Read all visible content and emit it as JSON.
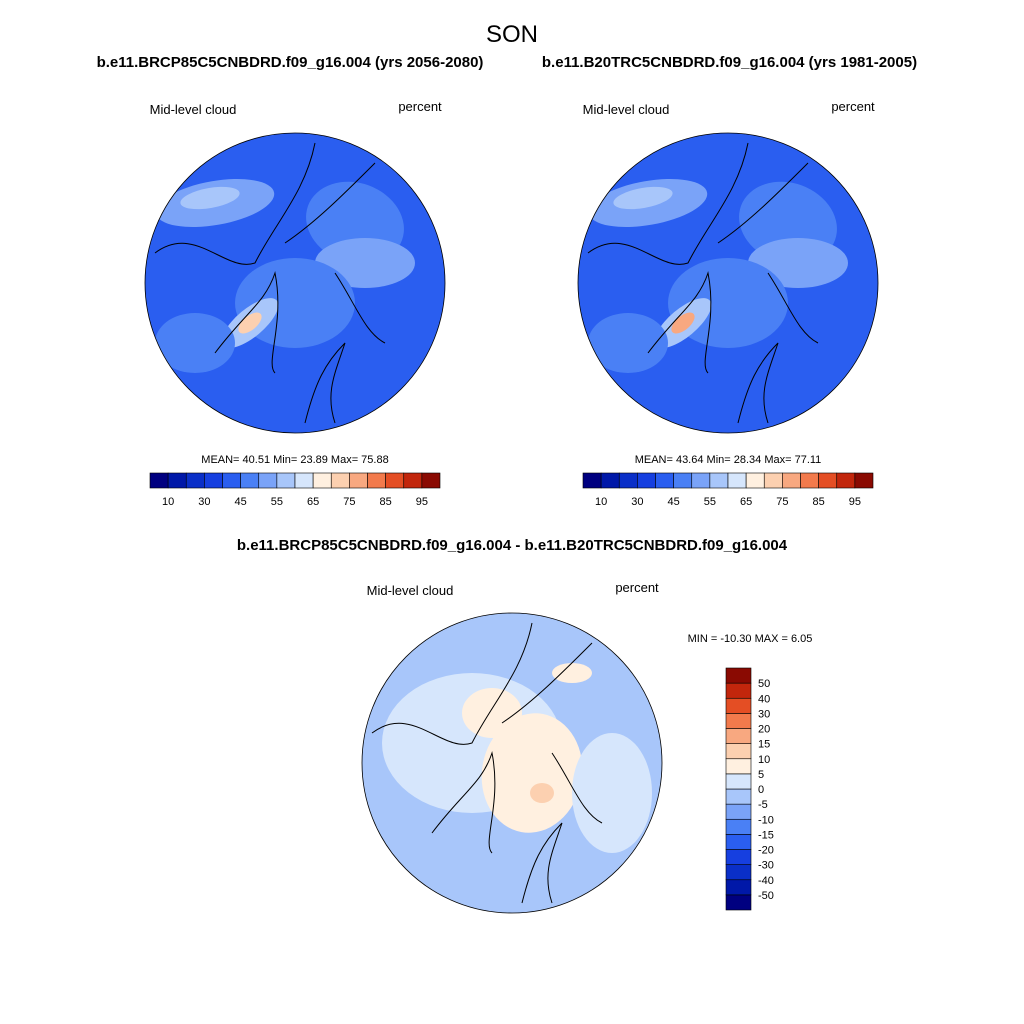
{
  "title": "SON",
  "colors": [
    "#000080",
    "#0018a8",
    "#0a2fc8",
    "#163fe0",
    "#2a5ef0",
    "#4a80f5",
    "#7aa3f8",
    "#a8c6fa",
    "#d6e6fc",
    "#fff0e0",
    "#fcd0b0",
    "#f8a880",
    "#f27a4c",
    "#e44e24",
    "#c2260c",
    "#8a0a02"
  ],
  "panels": [
    {
      "subtitle": "b.e11.BRCP85C5CNBDRD.f09_g16.004 (yrs 2056-2080)",
      "left_label": "Mid-level cloud",
      "right_label": "percent",
      "stats": "MEAN=  40.51  Min=  23.89  Max=  75.88",
      "colorbar_labels": [
        10,
        30,
        45,
        55,
        65,
        75,
        85,
        95
      ]
    },
    {
      "subtitle": "b.e11.B20TRC5CNBDRD.f09_g16.004 (yrs 1981-2005)",
      "left_label": "Mid-level cloud",
      "right_label": "percent",
      "stats": "MEAN=  43.64  Min=  28.34  Max=  77.11",
      "colorbar_labels": [
        10,
        30,
        45,
        55,
        65,
        75,
        85,
        95
      ]
    }
  ],
  "difference": {
    "subtitle": "b.e11.BRCP85C5CNBDRD.f09_g16.004 - b.e11.B20TRC5CNBDRD.f09_g16.004",
    "left_label": "Mid-level cloud",
    "right_label": "percent",
    "stats": "MIN = -10.30 MAX =   6.05",
    "colorbar_labels": [
      50,
      40,
      30,
      20,
      15,
      10,
      5,
      0,
      -5,
      -10,
      -15,
      -20,
      -30,
      -40,
      -50
    ]
  }
}
